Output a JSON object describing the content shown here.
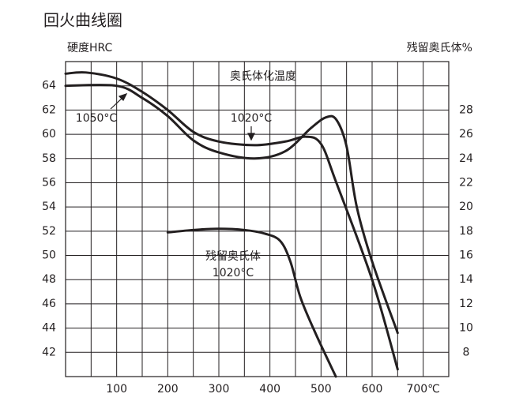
{
  "chart_data": {
    "type": "line",
    "title": "回火曲线圈",
    "y_label": "硬度HRC",
    "y2_label": "残留奥氏体%",
    "annotations": [
      "奥氏体化温度",
      "1050°C",
      "1020°C",
      "残留奥氏体",
      "1020°C"
    ],
    "xlim": [
      0,
      750
    ],
    "xticks": [
      100,
      200,
      300,
      400,
      500,
      600,
      {
        "value": 700,
        "label": "700℃"
      }
    ],
    "xgrid": [
      50,
      100,
      150,
      200,
      250,
      300,
      350,
      400,
      450,
      500,
      550,
      600,
      650,
      700
    ],
    "ylim": [
      40,
      66
    ],
    "yticks": [
      42,
      44,
      46,
      48,
      50,
      52,
      54,
      56,
      58,
      60,
      62,
      64
    ],
    "y2lim": [
      6,
      32
    ],
    "y2ticks": [
      8,
      10,
      12,
      14,
      16,
      18,
      20,
      22,
      24,
      26,
      28
    ],
    "grid": true,
    "series": [
      {
        "color": "#231f20",
        "x": [
          0,
          40,
          100,
          150,
          200,
          250,
          300,
          370,
          430,
          470,
          500,
          530,
          600,
          650
        ],
        "values": [
          65,
          65.1,
          64.6,
          63.5,
          62.0,
          60.2,
          59.4,
          59.1,
          59.4,
          59.8,
          59.2,
          56,
          48,
          40.6
        ]
      },
      {
        "color": "#231f20",
        "x": [
          0,
          100,
          150,
          200,
          250,
          300,
          370,
          430,
          480,
          510,
          530,
          550,
          570,
          600,
          650
        ],
        "values": [
          64,
          64,
          63,
          61.5,
          59.5,
          58.5,
          58.0,
          58.6,
          60.5,
          61.4,
          61.2,
          59,
          54,
          49.5,
          43.6
        ]
      },
      {
        "color": "#231f20",
        "axis": "y2",
        "x": [
          200,
          250,
          300,
          350,
          390,
          420,
          440,
          460,
          490,
          529
        ],
        "values": [
          17.9,
          18.1,
          18.2,
          18.1,
          17.8,
          17.2,
          15.5,
          12.5,
          9.5,
          6.0
        ]
      }
    ]
  }
}
